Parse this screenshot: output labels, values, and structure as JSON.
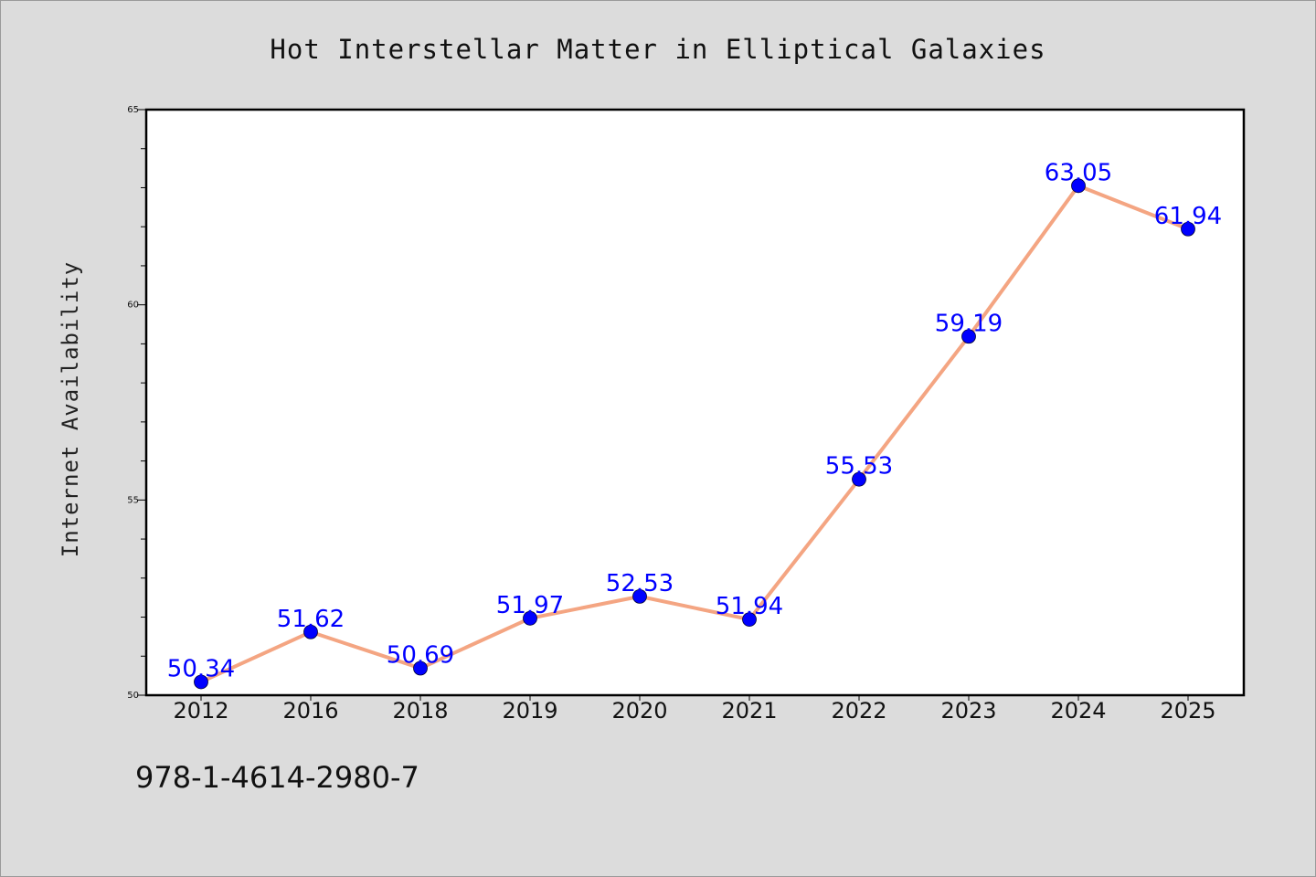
{
  "chart_data": {
    "type": "line",
    "title": "Hot Interstellar Matter in Elliptical Galaxies",
    "xlabel": "",
    "ylabel": "Internet Availability",
    "categories": [
      "2012",
      "2016",
      "2018",
      "2019",
      "2020",
      "2021",
      "2022",
      "2023",
      "2024",
      "2025"
    ],
    "values": [
      50.34,
      51.62,
      50.69,
      51.97,
      52.53,
      51.94,
      55.53,
      59.19,
      63.05,
      61.94
    ],
    "value_labels": [
      "50.34",
      "51.62",
      "50.69",
      "51.97",
      "52.53",
      "51.94",
      "55.53",
      "59.19",
      "63.05",
      "61.94"
    ],
    "ylim": [
      50,
      65
    ],
    "yticks": [
      50,
      55,
      60,
      65
    ],
    "grid": false,
    "line_color": "#f4a582",
    "marker_color": "#0000ff",
    "label_color": "#0000ff"
  },
  "footer": {
    "code": "978-1-4614-2980-7"
  }
}
